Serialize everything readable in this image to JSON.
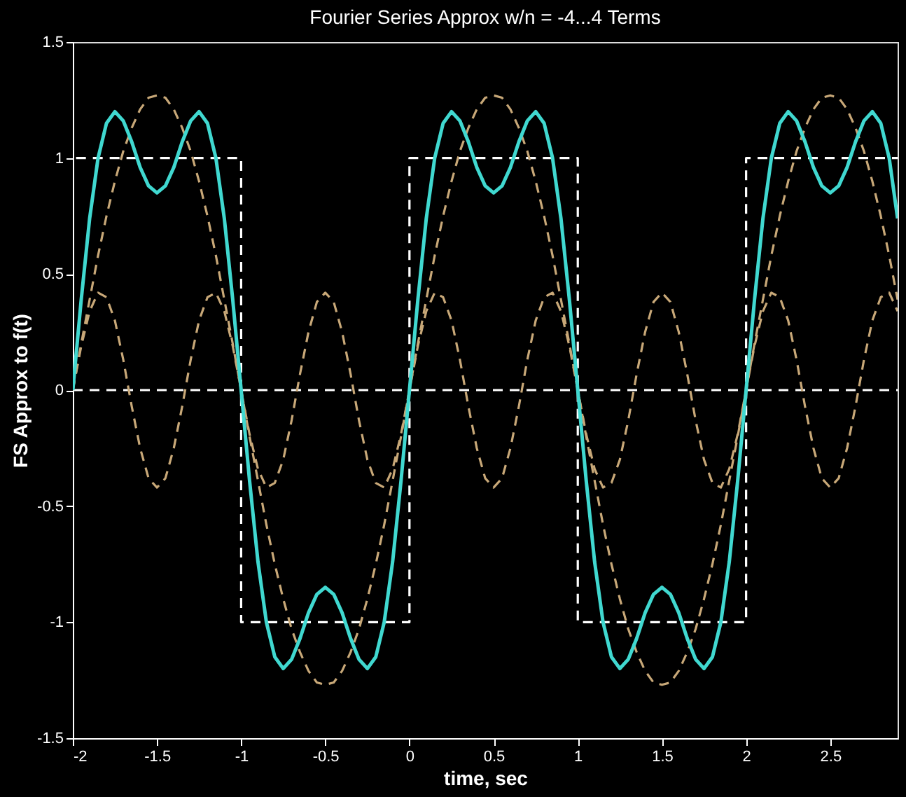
{
  "chart_data": {
    "type": "line",
    "title": "Fourier Series Approx w/n = -4...4 Terms",
    "xlabel": "time, sec",
    "ylabel": "FS Approx to f(t)",
    "xlim": [
      -2,
      2.9
    ],
    "ylim": [
      -1.5,
      1.5
    ],
    "xticks": [
      -2,
      -1.5,
      -1,
      -0.5,
      0,
      0.5,
      1,
      1.5,
      2,
      2.5
    ],
    "yticks": [
      -1.5,
      -1,
      -0.5,
      0,
      0.5,
      1,
      1.5
    ],
    "grid": false,
    "marker": "none",
    "x": [
      -2,
      -1.95,
      -1.9,
      -1.85,
      -1.8,
      -1.75,
      -1.7,
      -1.65,
      -1.6,
      -1.55,
      -1.5,
      -1.45,
      -1.4,
      -1.35,
      -1.3,
      -1.25,
      -1.2,
      -1.15,
      -1.1,
      -1.05,
      -1,
      -0.95,
      -0.9,
      -0.85,
      -0.8,
      -0.75,
      -0.7,
      -0.65,
      -0.6,
      -0.55,
      -0.5,
      -0.45,
      -0.4,
      -0.35,
      -0.3,
      -0.25,
      -0.2,
      -0.15,
      -0.1,
      -0.05,
      0,
      0.05,
      0.1,
      0.15,
      0.2,
      0.25,
      0.3,
      0.35,
      0.4,
      0.45,
      0.5,
      0.55,
      0.6,
      0.65,
      0.7,
      0.75,
      0.8,
      0.85,
      0.9,
      0.95,
      1,
      1.05,
      1.1,
      1.15,
      1.2,
      1.25,
      1.3,
      1.35,
      1.4,
      1.45,
      1.5,
      1.55,
      1.6,
      1.65,
      1.7,
      1.75,
      1.8,
      1.85,
      1.9,
      1.95,
      2,
      2.05,
      2.1,
      2.15,
      2.2,
      2.25,
      2.3,
      2.35,
      2.4,
      2.45,
      2.5,
      2.55,
      2.6,
      2.65,
      2.7,
      2.75,
      2.8,
      2.85,
      2.9
    ],
    "series": [
      {
        "line_style": "dashed",
        "color": "#ffffff",
        "x": [
          -2,
          2.9
        ],
        "values": [
          0,
          0
        ]
      },
      {
        "line_style": "dashed",
        "color": "#ffffff",
        "x": [
          -2,
          -2,
          -1,
          -1,
          0,
          0,
          1,
          1,
          2,
          2,
          2.9
        ],
        "values": [
          0,
          1,
          1,
          -1,
          -1,
          1,
          1,
          -1,
          -1,
          1,
          1
        ]
      },
      {
        "line_style": "dashed",
        "color": "#c8a878",
        "values": [
          0,
          0.2,
          0.39,
          0.58,
          0.75,
          0.9,
          1.03,
          1.13,
          1.21,
          1.26,
          1.27,
          1.26,
          1.21,
          1.13,
          1.03,
          0.9,
          0.75,
          0.58,
          0.39,
          0.2,
          0,
          -0.2,
          -0.39,
          -0.58,
          -0.75,
          -0.9,
          -1.03,
          -1.13,
          -1.21,
          -1.26,
          -1.27,
          -1.26,
          -1.21,
          -1.13,
          -1.03,
          -0.9,
          -0.75,
          -0.58,
          -0.39,
          -0.2,
          0,
          0.2,
          0.39,
          0.58,
          0.75,
          0.9,
          1.03,
          1.13,
          1.21,
          1.26,
          1.27,
          1.26,
          1.21,
          1.13,
          1.03,
          0.9,
          0.75,
          0.58,
          0.39,
          0.2,
          0,
          -0.2,
          -0.39,
          -0.58,
          -0.75,
          -0.9,
          -1.03,
          -1.13,
          -1.21,
          -1.26,
          -1.27,
          -1.26,
          -1.21,
          -1.13,
          -1.03,
          -0.9,
          -0.75,
          -0.58,
          -0.39,
          -0.2,
          0,
          0.2,
          0.39,
          0.58,
          0.75,
          0.9,
          1.03,
          1.13,
          1.21,
          1.26,
          1.27,
          1.26,
          1.21,
          1.13,
          1.03,
          0.9,
          0.75,
          0.58,
          0.39
        ]
      },
      {
        "line_style": "dashed",
        "color": "#c8a878",
        "values": [
          0,
          0.19,
          0.34,
          0.42,
          0.4,
          0.3,
          0.13,
          -0.07,
          -0.25,
          -0.38,
          -0.42,
          -0.38,
          -0.25,
          -0.07,
          0.13,
          0.3,
          0.4,
          0.42,
          0.34,
          0.19,
          0,
          -0.19,
          -0.34,
          -0.42,
          -0.4,
          -0.3,
          -0.13,
          0.07,
          0.25,
          0.38,
          0.42,
          0.38,
          0.25,
          0.07,
          -0.13,
          -0.3,
          -0.4,
          -0.42,
          -0.34,
          -0.19,
          0,
          0.19,
          0.34,
          0.42,
          0.4,
          0.3,
          0.13,
          -0.07,
          -0.25,
          -0.38,
          -0.42,
          -0.38,
          -0.25,
          -0.07,
          0.13,
          0.3,
          0.4,
          0.42,
          0.34,
          0.19,
          0,
          -0.19,
          -0.34,
          -0.42,
          -0.4,
          -0.3,
          -0.13,
          0.07,
          0.25,
          0.38,
          0.42,
          0.38,
          0.25,
          0.07,
          -0.13,
          -0.3,
          -0.4,
          -0.42,
          -0.34,
          -0.19,
          0,
          0.19,
          0.34,
          0.42,
          0.4,
          0.3,
          0.13,
          -0.07,
          -0.25,
          -0.38,
          -0.42,
          -0.38,
          -0.25,
          -0.07,
          0.13,
          0.3,
          0.4,
          0.42,
          0.34
        ]
      },
      {
        "line_style": "solid",
        "color": "#40d8d0",
        "values": [
          0,
          0.39,
          0.74,
          1.0,
          1.15,
          1.2,
          1.16,
          1.07,
          0.96,
          0.88,
          0.85,
          0.88,
          0.96,
          1.07,
          1.16,
          1.2,
          1.15,
          1.0,
          0.74,
          0.39,
          0,
          -0.39,
          -0.74,
          -1.0,
          -1.15,
          -1.2,
          -1.16,
          -1.07,
          -0.96,
          -0.88,
          -0.85,
          -0.88,
          -0.96,
          -1.07,
          -1.16,
          -1.2,
          -1.15,
          -1.0,
          -0.74,
          -0.39,
          0,
          0.39,
          0.74,
          1.0,
          1.15,
          1.2,
          1.16,
          1.07,
          0.96,
          0.88,
          0.85,
          0.88,
          0.96,
          1.07,
          1.16,
          1.2,
          1.15,
          1.0,
          0.74,
          0.39,
          0,
          -0.39,
          -0.74,
          -1.0,
          -1.15,
          -1.2,
          -1.16,
          -1.07,
          -0.96,
          -0.88,
          -0.85,
          -0.88,
          -0.96,
          -1.07,
          -1.16,
          -1.2,
          -1.15,
          -1.0,
          -0.74,
          -0.39,
          0,
          0.39,
          0.74,
          1.0,
          1.15,
          1.2,
          1.16,
          1.07,
          0.96,
          0.88,
          0.85,
          0.88,
          0.96,
          1.07,
          1.16,
          1.2,
          1.15,
          1.0,
          0.74
        ]
      }
    ]
  }
}
